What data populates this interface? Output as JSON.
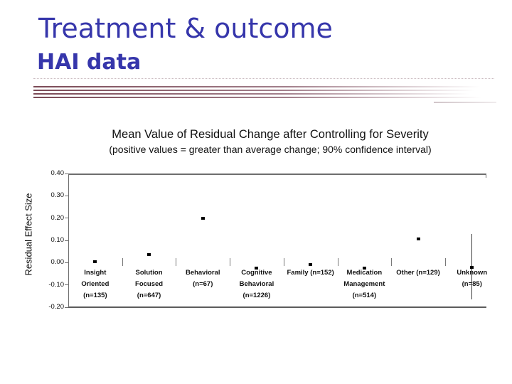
{
  "slide": {
    "title": "Treatment & outcome",
    "subtitle": "HAI data"
  },
  "colors": {
    "title_text": "#3636ab",
    "stripe_accent": "#7b4a56",
    "axis_line": "#6e6e6e",
    "marker": "#000000"
  },
  "chart_data": {
    "type": "scatter",
    "title": "Mean Value of Residual Change after Controlling for Severity",
    "subtitle": "(positive values = greater than average change; 90% confidence interval)",
    "ylabel": "Residual Effect Size",
    "ylim": [
      -0.2,
      0.4
    ],
    "yticks": [
      "0.40",
      "0.30",
      "0.20",
      "0.10",
      "0.00",
      "-0.10",
      "-0.20"
    ],
    "grid": false,
    "legend": "none",
    "categories": [
      {
        "label_lines": [
          "Insight",
          "Oriented",
          "(n=135)"
        ],
        "label": "Insight Oriented (n=135)",
        "value": 0.005
      },
      {
        "label_lines": [
          "Solution",
          "Focused",
          "(n=647)"
        ],
        "label": "Solution Focused (n=647)",
        "value": 0.035
      },
      {
        "label_lines": [
          "Behavioral",
          "(n=67)"
        ],
        "label": "Behavioral (n=67)",
        "value": 0.2
      },
      {
        "label_lines": [
          "Cognitive",
          "Behavioral",
          "(n=1226)"
        ],
        "label": "Cognitive Behavioral (n=1226)",
        "value": -0.025
      },
      {
        "label_lines": [
          "Family (n=152)"
        ],
        "label": "Family (n=152)",
        "value": -0.01
      },
      {
        "label_lines": [
          "Medication",
          "Management",
          "(n=514)"
        ],
        "label": "Medication Management (n=514)",
        "value": -0.025
      },
      {
        "label_lines": [
          "Other (n=129)"
        ],
        "label": "Other (n=129)",
        "value": 0.105
      },
      {
        "label_lines": [
          "Unknown",
          "(n=85)"
        ],
        "label": "Unknown (n=85)",
        "value": -0.02,
        "ci": [
          -0.165,
          0.13
        ]
      }
    ]
  }
}
